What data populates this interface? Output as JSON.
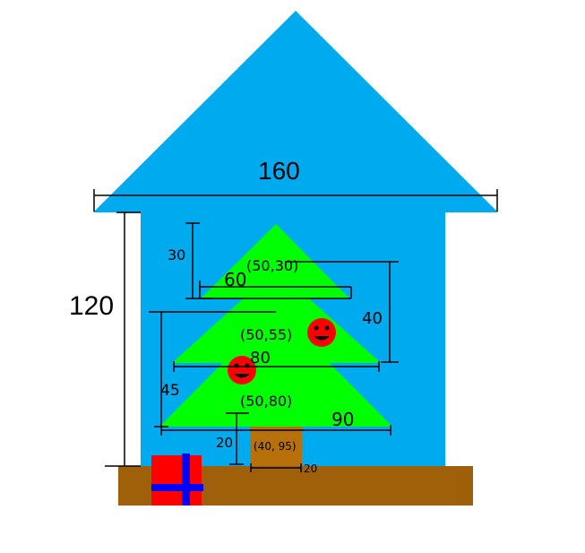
{
  "colors": {
    "house": "#00aaee",
    "tree": "#00ff00",
    "trunk": "#b8700a",
    "ground": "#a0600a",
    "gift": "#ff0000",
    "ribbon": "#0000ff",
    "ornament": "#ff0000",
    "wall_gap": "#ffffff"
  },
  "labels": {
    "roof_width": "160",
    "house_height": "120",
    "tier1_height": "30",
    "tier1_width": "60",
    "tier1_point": "(50,30)",
    "tier2_height": "40",
    "tier2_point": "(50,55)",
    "tier2_width": "80",
    "tier3_height": "45",
    "tier3_point": "(50,80)",
    "tier3_width": "90",
    "trunk_height": "20",
    "trunk_point": "(40, 95)",
    "trunk_width": "20"
  },
  "icons": {
    "ornament": "smiley-face-icon",
    "gift": "gift-box-icon"
  }
}
